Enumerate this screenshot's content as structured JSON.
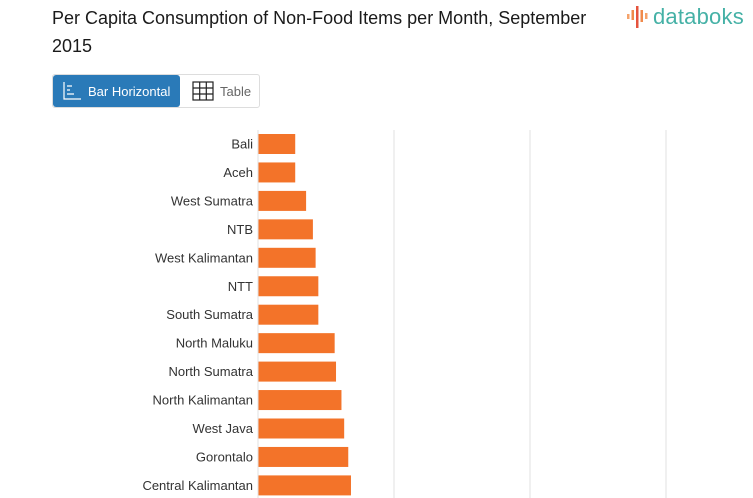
{
  "header": {
    "title": "Per Capita Consumption of Non-Food Items per Month, September 2015",
    "logo_text": "databoks"
  },
  "view_toggle": {
    "options": [
      {
        "label": "Bar Horizontal",
        "icon": "bar-chart-icon",
        "active": true
      },
      {
        "label": "Table",
        "icon": "table-grid-icon",
        "active": false
      }
    ]
  },
  "colors": {
    "bar": "#f37329",
    "active_button": "#2a7ab8",
    "logo": "#45b1a6",
    "grid": "#e2e2e2"
  },
  "chart_data": {
    "type": "bar",
    "orientation": "horizontal",
    "title": "Per Capita Consumption of Non-Food Items per Month, September 2015",
    "categories": [
      "Bali",
      "Aceh",
      "West Sumatra",
      "NTB",
      "West Kalimantan",
      "NTT",
      "South Sumatra",
      "North Maluku",
      "North Sumatra",
      "North Kalimantan",
      "West Java",
      "Gorontalo",
      "Central Kalimantan"
    ],
    "values": [
      0.27,
      0.27,
      0.35,
      0.4,
      0.42,
      0.44,
      0.44,
      0.56,
      0.57,
      0.61,
      0.63,
      0.66,
      0.68
    ],
    "xlim": [
      0,
      3
    ],
    "grid": true,
    "xlabel": "",
    "ylabel": ""
  }
}
